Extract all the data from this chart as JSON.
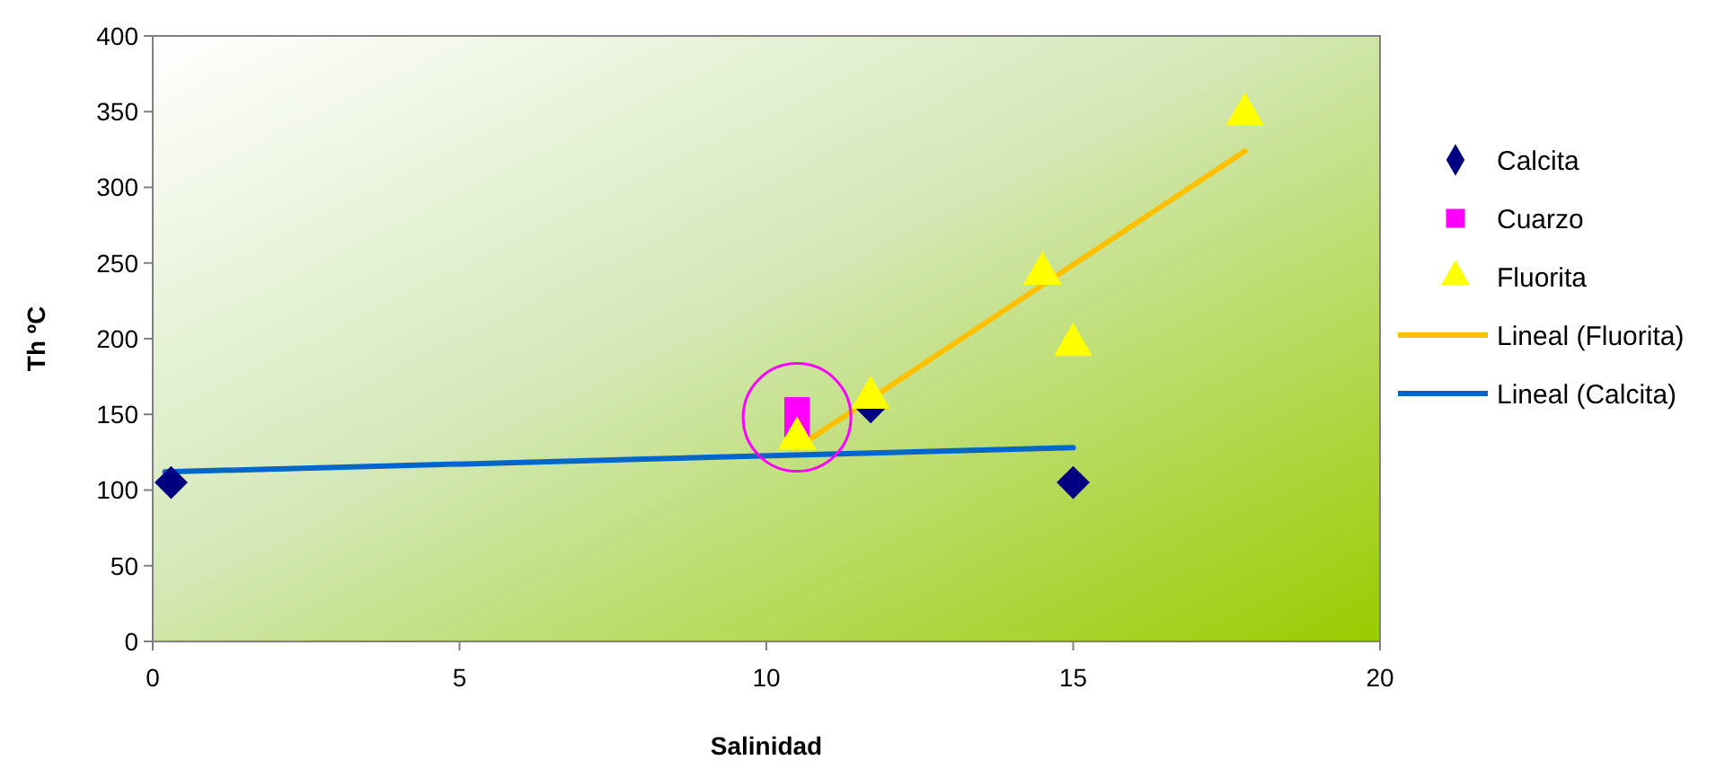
{
  "chart_data": {
    "type": "scatter",
    "xlabel": "Salinidad",
    "ylabel": "Th ºC",
    "xlim": [
      0,
      20
    ],
    "ylim": [
      0,
      400
    ],
    "xticks": [
      0,
      5,
      10,
      15,
      20
    ],
    "yticks": [
      0,
      50,
      100,
      150,
      200,
      250,
      300,
      350,
      400
    ],
    "grid": false,
    "legend": "right",
    "series": [
      {
        "name": "Calcita",
        "color": "#000080",
        "marker": "diamond",
        "x": [
          0.3,
          11.7,
          15
        ],
        "values": [
          105,
          155,
          105
        ]
      },
      {
        "name": "Cuarzo",
        "color": "#ff00ff",
        "marker": "square",
        "x": [
          10.5,
          10.5
        ],
        "values": [
          153,
          143
        ]
      },
      {
        "name": "Fluorita",
        "color": "#ffff00",
        "marker": "triangle",
        "x": [
          10.5,
          11.7,
          14.5,
          15,
          17.8
        ],
        "values": [
          134,
          161,
          243,
          196,
          348
        ]
      },
      {
        "name": "Lineal (Fluorita)",
        "type": "line",
        "color": "#ffc000",
        "marker": "none",
        "x": [
          10.5,
          17.8
        ],
        "values": [
          128,
          324
        ]
      },
      {
        "name": "Lineal (Calcita)",
        "type": "line",
        "color": "#0066cc",
        "marker": "none",
        "x": [
          0.2,
          15
        ],
        "values": [
          112,
          128
        ]
      }
    ]
  }
}
